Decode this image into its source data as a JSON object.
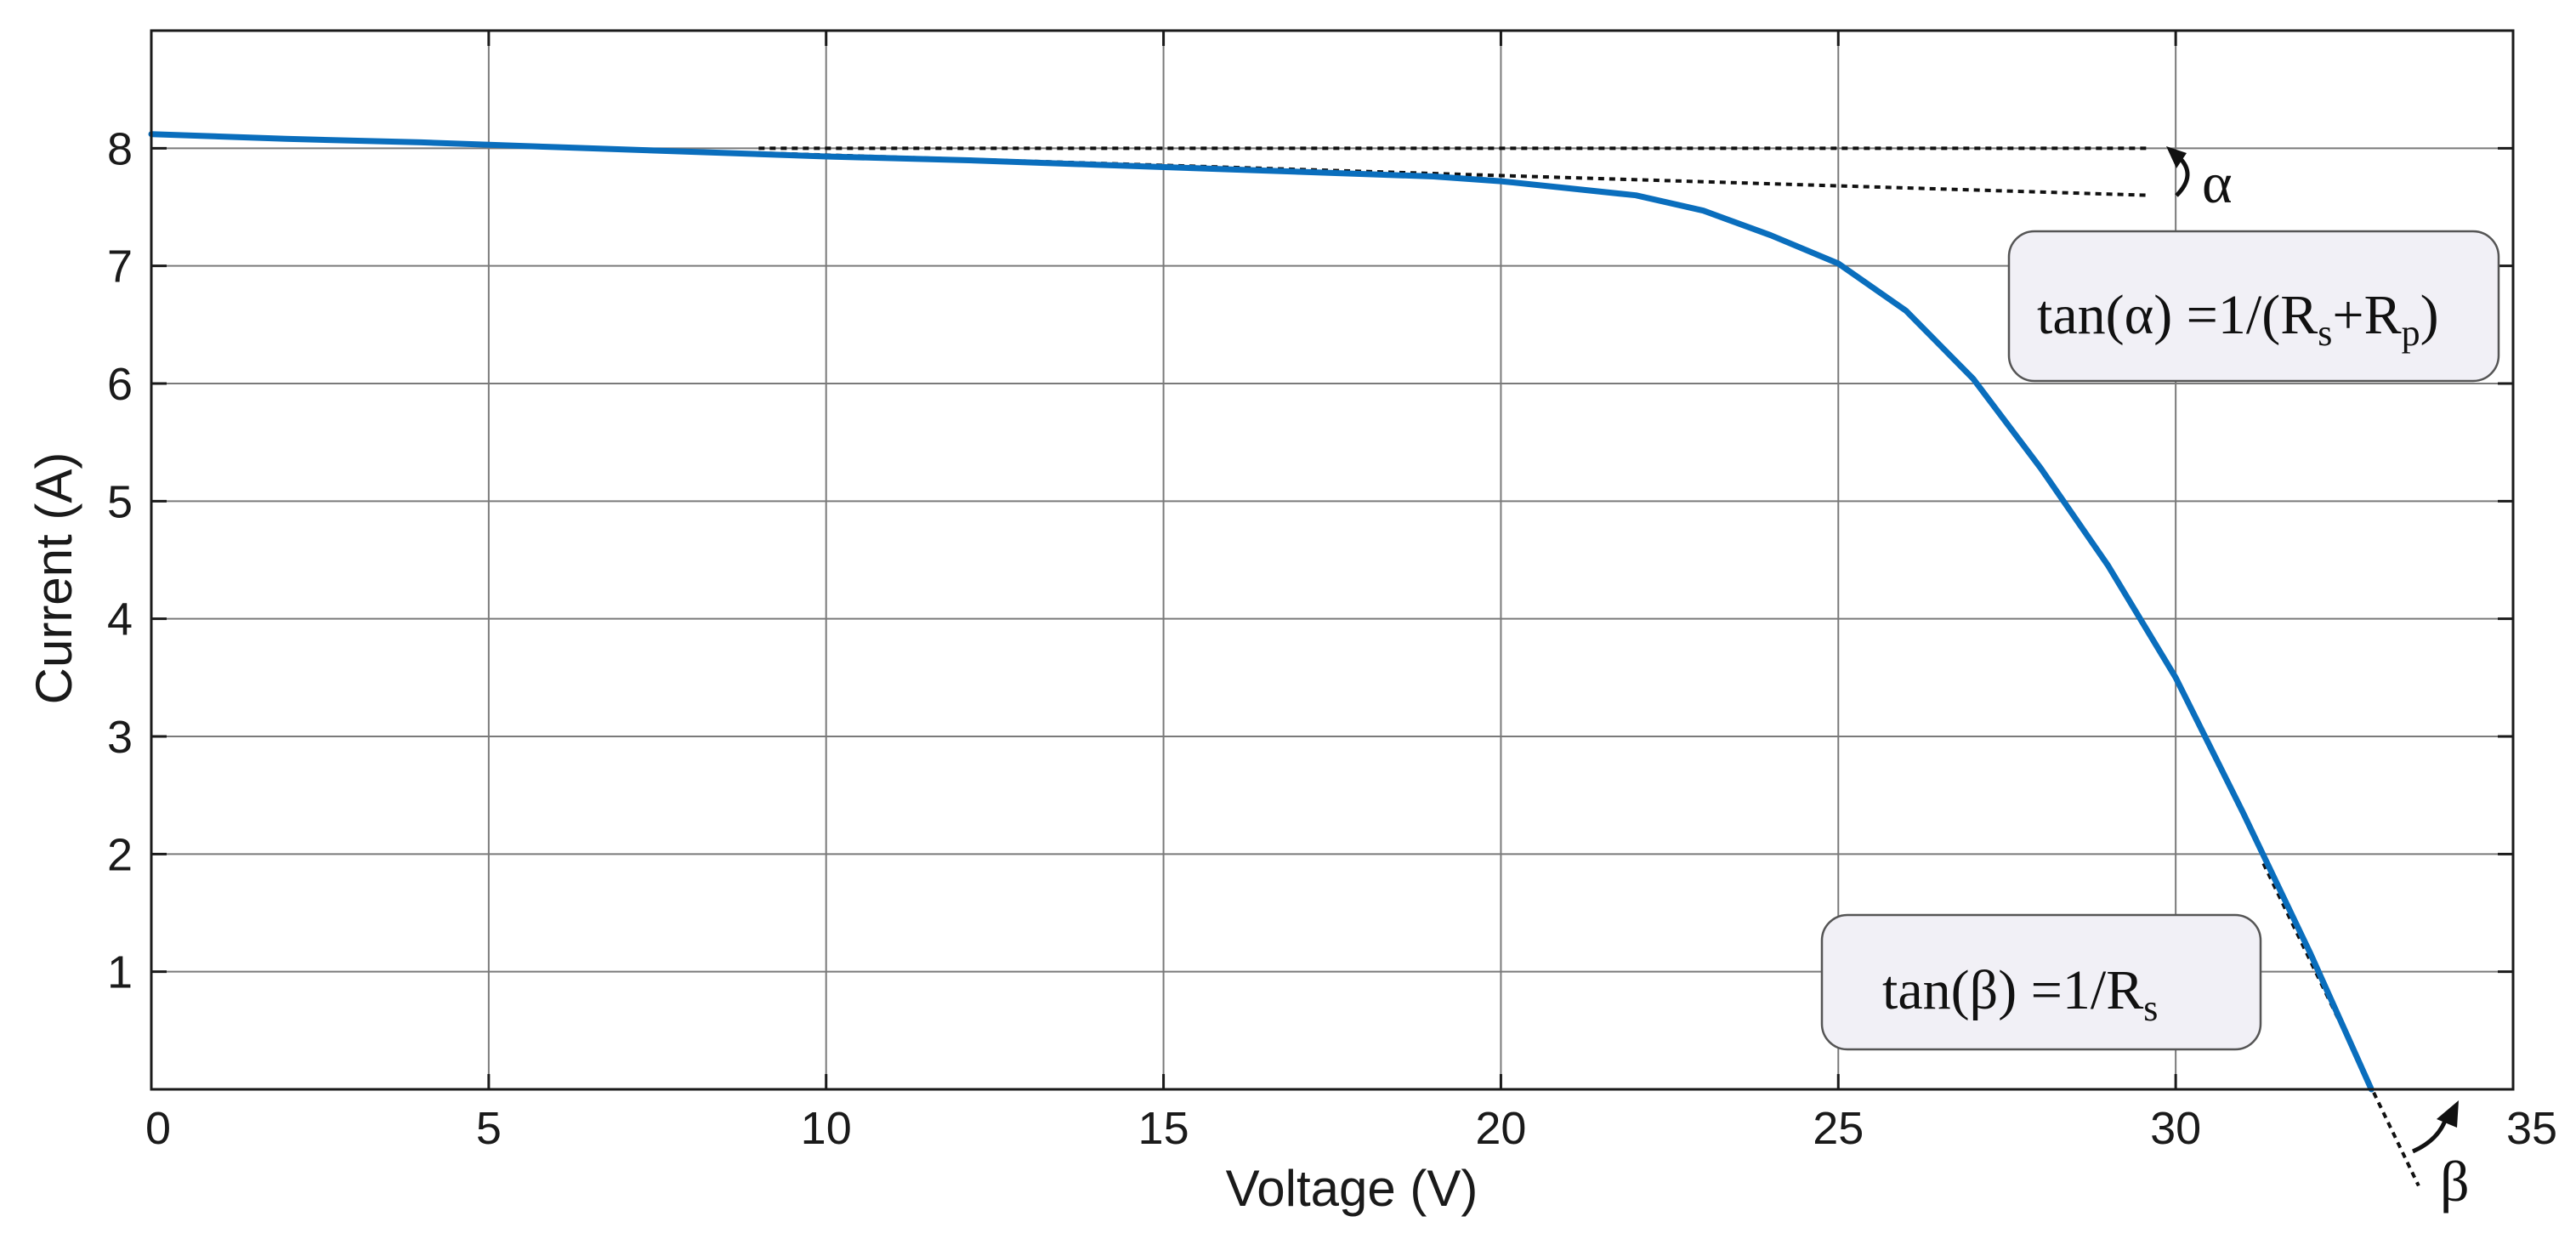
{
  "chart_data": {
    "type": "line",
    "title": "",
    "xlabel": "Voltage (V)",
    "ylabel": "Current (A)",
    "xlim": [
      0,
      35
    ],
    "ylim": [
      0,
      9
    ],
    "xticks": [
      0,
      5,
      10,
      15,
      20,
      25,
      30,
      35
    ],
    "xtick_labels": [
      "0",
      "5",
      "10",
      "15",
      "20",
      "25",
      "30",
      "35"
    ],
    "yticks": [
      1,
      2,
      3,
      4,
      5,
      6,
      7,
      8
    ],
    "ytick_labels": [
      "1",
      "2",
      "3",
      "4",
      "5",
      "6",
      "7",
      "8"
    ],
    "grid": true,
    "line_color": "#0a6ebd",
    "series": [
      {
        "x": [
          0,
          2,
          4,
          6,
          8,
          10,
          12,
          14,
          16,
          18,
          19,
          20,
          21,
          22,
          23,
          24,
          25,
          26,
          27,
          28,
          29,
          30,
          31,
          32,
          32.9
        ],
        "y": [
          8.12,
          8.08,
          8.05,
          8.01,
          7.97,
          7.93,
          7.9,
          7.86,
          7.82,
          7.78,
          7.76,
          7.72,
          7.66,
          7.6,
          7.47,
          7.26,
          7.02,
          6.62,
          6.04,
          5.28,
          4.45,
          3.5,
          2.35,
          1.15,
          0
        ]
      }
    ],
    "annotations": [
      {
        "label_parts": [
          "tan(α) =1/(R",
          "s",
          "+R",
          "p",
          ")"
        ],
        "tangent_x": [
          9,
          29.6
        ],
        "tangent_y": [
          7.96,
          7.6
        ],
        "reference_x": [
          9,
          29.6
        ],
        "reference_y": [
          8.0,
          8.0
        ],
        "angle_symbol": "α"
      },
      {
        "label_parts": [
          "tan(β) =1/R",
          "s"
        ],
        "tangent_x": [
          31.3,
          33.6
        ],
        "tangent_y": [
          1.92,
          -0.82
        ],
        "angle_symbol": "β"
      }
    ]
  }
}
